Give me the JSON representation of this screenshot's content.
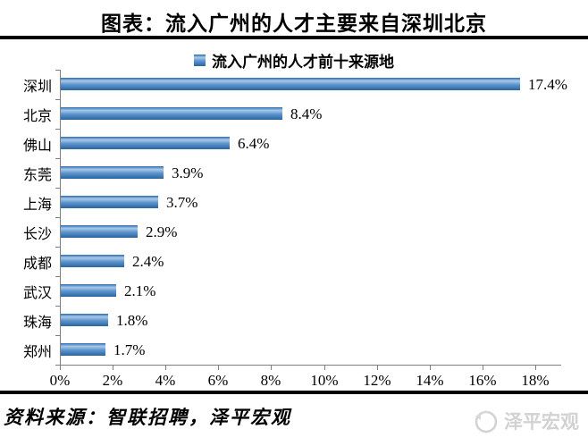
{
  "title": "图表：流入广州的人才主要来自深圳北京",
  "legend": {
    "label": "流入广州的人才前十来源地",
    "marker_icon": "series-swatch-icon"
  },
  "chart_data": {
    "type": "bar",
    "orientation": "horizontal",
    "title": "流入广州的人才前十来源地",
    "categories": [
      "深圳",
      "北京",
      "佛山",
      "东莞",
      "上海",
      "长沙",
      "成都",
      "武汉",
      "珠海",
      "郑州"
    ],
    "values": [
      17.4,
      8.4,
      6.4,
      3.9,
      3.7,
      2.9,
      2.4,
      2.1,
      1.8,
      1.7
    ],
    "value_labels": [
      "17.4%",
      "8.4%",
      "6.4%",
      "3.9%",
      "3.7%",
      "2.9%",
      "2.4%",
      "2.1%",
      "1.8%",
      "1.7%"
    ],
    "xlabel": "",
    "ylabel": "",
    "xlim": [
      0,
      18
    ],
    "x_ticks": [
      "0%",
      "2%",
      "4%",
      "6%",
      "8%",
      "10%",
      "12%",
      "14%",
      "16%",
      "18%"
    ],
    "x_tick_values": [
      0,
      2,
      4,
      6,
      8,
      10,
      12,
      14,
      16,
      18
    ],
    "grid": false,
    "legend_position": "top-center",
    "data_labels": "outside-end"
  },
  "footer": {
    "source": "资料来源：智联招聘，泽平宏观",
    "logo_icon": "megaphone-icon",
    "logo_text": "泽平宏观"
  },
  "colors": {
    "background": "#ffffff",
    "text": "#000000",
    "divider": "#000000",
    "axis": "#808080",
    "bar_edge": "#2a6ab0",
    "bar_light": "#a9c9e9",
    "bar_mid": "#5e94cd",
    "bar_dark": "#29659f",
    "logo_gray": "#d2d2d2"
  }
}
